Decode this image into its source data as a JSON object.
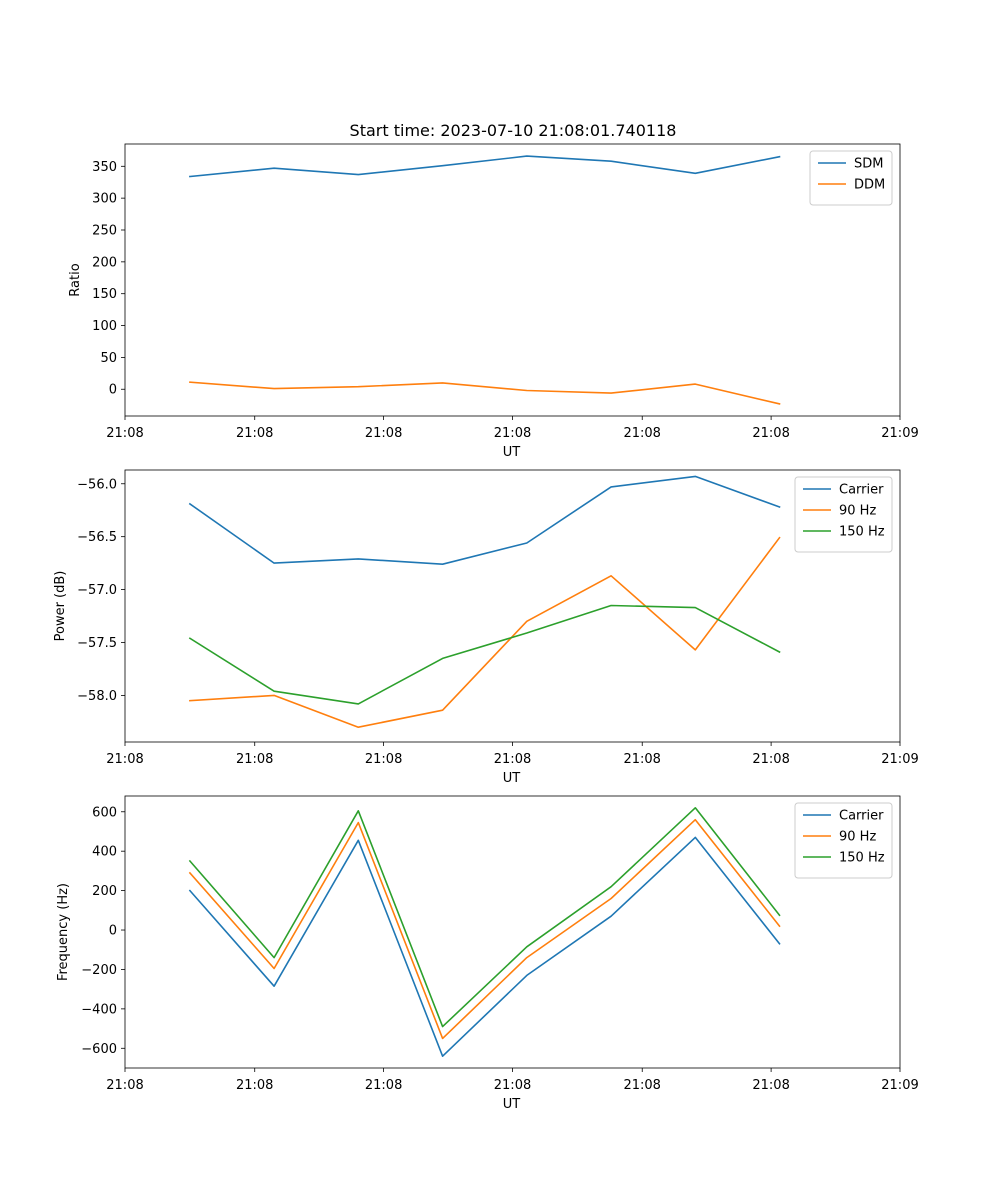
{
  "figure_title": "Start time: 2023-07-10 21:08:01.740118",
  "colors": {
    "blue": "#1f77b4",
    "orange": "#ff7f0e",
    "green": "#2ca02c"
  },
  "chart_data": [
    {
      "type": "line",
      "title": "Start time: 2023-07-10 21:08:01.740118",
      "xlabel": "UT",
      "ylabel": "Ratio",
      "x": [
        0,
        1,
        2,
        3,
        4,
        5,
        6,
        7
      ],
      "xlim": [
        -0.77,
        8.43
      ],
      "xtick_positions": [
        -0.77,
        0.77,
        2.3,
        3.83,
        5.37,
        6.9,
        8.43
      ],
      "xtick_labels": [
        "21:08",
        "21:08",
        "21:08",
        "21:08",
        "21:08",
        "21:08",
        "21:09"
      ],
      "ylim": [
        -42,
        385
      ],
      "yticks": [
        0,
        50,
        100,
        150,
        200,
        250,
        300,
        350
      ],
      "ytick_labels": [
        "0",
        "50",
        "100",
        "150",
        "200",
        "250",
        "300",
        "350"
      ],
      "legend_position": "top-right",
      "series": [
        {
          "name": "SDM",
          "color": "#1f77b4",
          "values": [
            334,
            347,
            337,
            351,
            366,
            358,
            339,
            365
          ]
        },
        {
          "name": "DDM",
          "color": "#ff7f0e",
          "values": [
            11,
            1,
            4,
            10,
            -2,
            -6,
            8,
            -23
          ]
        }
      ]
    },
    {
      "type": "line",
      "xlabel": "UT",
      "ylabel": "Power (dB)",
      "x": [
        0,
        1,
        2,
        3,
        4,
        5,
        6,
        7
      ],
      "xlim": [
        -0.77,
        8.43
      ],
      "xtick_positions": [
        -0.77,
        0.77,
        2.3,
        3.83,
        5.37,
        6.9,
        8.43
      ],
      "xtick_labels": [
        "21:08",
        "21:08",
        "21:08",
        "21:08",
        "21:08",
        "21:08",
        "21:09"
      ],
      "ylim": [
        -58.44,
        -55.87
      ],
      "yticks": [
        -58.0,
        -57.5,
        -57.0,
        -56.5,
        -56.0
      ],
      "ytick_labels": [
        "−58.0",
        "−57.5",
        "−57.0",
        "−56.5",
        "−56.0"
      ],
      "legend_position": "top-right",
      "series": [
        {
          "name": "Carrier",
          "color": "#1f77b4",
          "values": [
            -56.19,
            -56.75,
            -56.71,
            -56.76,
            -56.56,
            -56.03,
            -55.93,
            -56.22
          ]
        },
        {
          "name": "90 Hz",
          "color": "#ff7f0e",
          "values": [
            -58.05,
            -58.0,
            -58.3,
            -58.14,
            -57.3,
            -56.87,
            -57.57,
            -56.51
          ]
        },
        {
          "name": "150 Hz",
          "color": "#2ca02c",
          "values": [
            -57.46,
            -57.96,
            -58.08,
            -57.65,
            -57.41,
            -57.15,
            -57.17,
            -57.59
          ]
        }
      ]
    },
    {
      "type": "line",
      "xlabel": "UT",
      "ylabel": "Frequency (Hz)",
      "x": [
        0,
        1,
        2,
        3,
        4,
        5,
        6,
        7
      ],
      "xlim": [
        -0.77,
        8.43
      ],
      "xtick_positions": [
        -0.77,
        0.77,
        2.3,
        3.83,
        5.37,
        6.9,
        8.43
      ],
      "xtick_labels": [
        "21:08",
        "21:08",
        "21:08",
        "21:08",
        "21:08",
        "21:08",
        "21:09"
      ],
      "ylim": [
        -700,
        680
      ],
      "yticks": [
        -600,
        -400,
        -200,
        0,
        200,
        400,
        600
      ],
      "ytick_labels": [
        "−600",
        "−400",
        "−200",
        "0",
        "200",
        "400",
        "600"
      ],
      "legend_position": "top-right",
      "series": [
        {
          "name": "Carrier",
          "color": "#1f77b4",
          "values": [
            200,
            -285,
            455,
            -640,
            -230,
            70,
            470,
            -70
          ]
        },
        {
          "name": "90 Hz",
          "color": "#ff7f0e",
          "values": [
            290,
            -195,
            545,
            -550,
            -140,
            160,
            560,
            20
          ]
        },
        {
          "name": "150 Hz",
          "color": "#2ca02c",
          "values": [
            350,
            -140,
            605,
            -490,
            -85,
            220,
            620,
            75
          ]
        }
      ]
    }
  ]
}
